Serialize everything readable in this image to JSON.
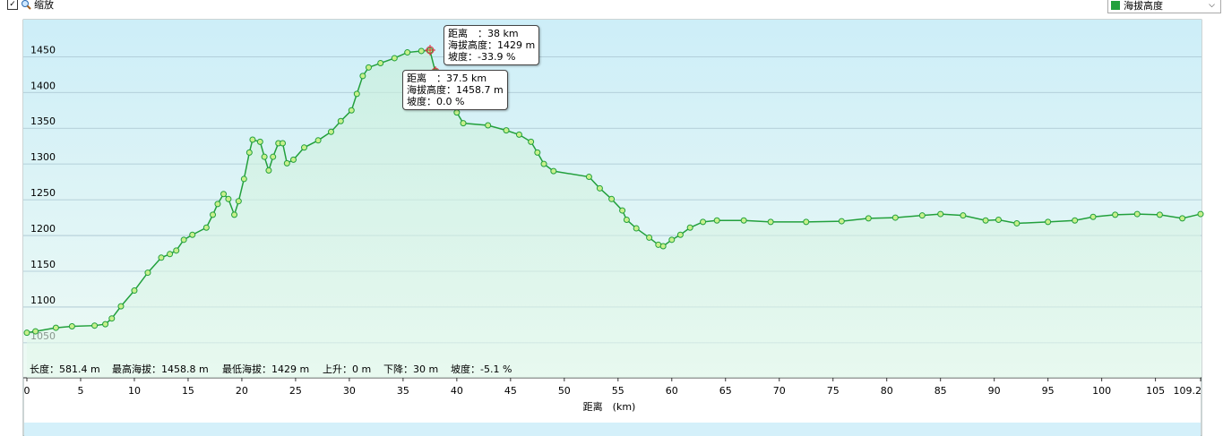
{
  "toolbar": {
    "zoom_label": "缩放"
  },
  "stats": [
    "长度：581.4 m",
    "最高海拔：1458.8 m",
    "最低海拔：1429 m",
    "上升：0 m",
    "下降：30 m",
    "坡度：-5.1 %"
  ],
  "tooltips": [
    {
      "lines": [
        "距离　：38 km",
        "海拔高度：1429 m",
        "坡度：-33.9 %"
      ]
    },
    {
      "lines": [
        "距离　：37.5 km",
        "海拔高度：1458.7 m",
        "坡度：0.0 %"
      ]
    }
  ],
  "chart_data": {
    "type": "line",
    "x_label": "距离　(km)",
    "xlim": [
      0,
      109.2
    ],
    "xticks": [
      0,
      5,
      10,
      15,
      20,
      25,
      30,
      35,
      40,
      45,
      50,
      55,
      60,
      65,
      70,
      75,
      80,
      85,
      90,
      95,
      100,
      105,
      109.2
    ],
    "ylim": [
      1001,
      1498
    ],
    "yticks": [
      1050,
      1100,
      1150,
      1200,
      1250,
      1300,
      1350,
      1400,
      1450
    ],
    "grid": true,
    "series": [
      {
        "name": "海拔高度",
        "color": "#22a03c",
        "x": [
          0,
          0.8,
          2.7,
          4.2,
          6.3,
          7.3,
          7.9,
          8.75,
          10,
          11.25,
          12.5,
          13.3,
          13.9,
          14.6,
          15.4,
          16.7,
          17.3,
          17.75,
          18.3,
          18.75,
          19.3,
          19.7,
          20.2,
          20.7,
          21,
          21.7,
          22.1,
          22.5,
          22.9,
          23.4,
          23.8,
          24.2,
          24.8,
          25.8,
          27.1,
          28.3,
          29.2,
          30.2,
          30.7,
          31.25,
          31.8,
          32.9,
          34.2,
          35.4,
          36.7,
          37.5,
          38,
          38.3,
          39.2,
          40,
          40.6,
          42.9,
          44.6,
          45.8,
          46.9,
          47.5,
          48.1,
          49,
          52.3,
          53.3,
          54.4,
          55.4,
          55.8,
          56.7,
          57.9,
          58.75,
          59.2,
          60,
          60.8,
          61.7,
          62.9,
          64.2,
          66.7,
          69.2,
          72.5,
          75.8,
          78.3,
          80.8,
          83.3,
          85,
          87.1,
          89.2,
          90.4,
          92.1,
          95,
          97.5,
          99.2,
          101.25,
          103.3,
          105.4,
          107.5,
          109.2
        ],
        "values": [
          1064,
          1066,
          1071,
          1073,
          1074,
          1076,
          1084,
          1101,
          1123,
          1148,
          1169,
          1174,
          1179,
          1194,
          1201,
          1211,
          1229,
          1244,
          1258,
          1251,
          1229,
          1248,
          1279,
          1316,
          1334,
          1331,
          1310,
          1291,
          1310,
          1329,
          1329,
          1301,
          1306,
          1323,
          1333,
          1345,
          1360,
          1375,
          1398,
          1423,
          1435,
          1441,
          1448,
          1456,
          1458,
          1458.7,
          1429,
          1410,
          1391,
          1372,
          1357,
          1354,
          1347,
          1341,
          1331,
          1316,
          1300,
          1290,
          1282,
          1266,
          1251,
          1235,
          1222,
          1210,
          1197,
          1187,
          1185,
          1194,
          1201,
          1211,
          1219,
          1221,
          1221,
          1219,
          1219,
          1220,
          1224,
          1225,
          1228,
          1230,
          1228,
          1221,
          1222,
          1217,
          1219,
          1221,
          1226,
          1229,
          1230,
          1229,
          1224,
          1230
        ]
      }
    ]
  }
}
